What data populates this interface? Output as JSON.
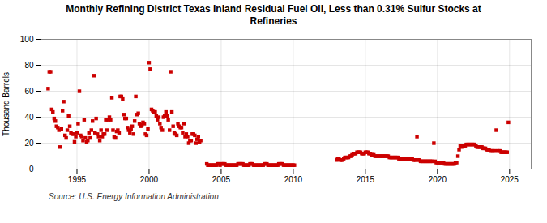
{
  "chart_data": {
    "type": "scatter",
    "title": "Monthly Refining District Texas Inland Residual Fuel Oil, Less than 0.31% Sulfur Stocks at\nRefineries",
    "ylabel": "Thousand Barrels",
    "source": "Source: U.S. Energy Information Administration",
    "color": "#cc0000",
    "marker": "square",
    "grid": true,
    "xlim": [
      1992.5,
      2026.5
    ],
    "xticks": [
      1995,
      2000,
      2005,
      2010,
      2015,
      2020,
      2025
    ],
    "ylim": [
      0,
      100
    ],
    "yticks": [
      0,
      20,
      40,
      60,
      80,
      100
    ],
    "x": [
      1993.0,
      1993.08,
      1993.17,
      1993.25,
      1993.33,
      1993.42,
      1993.5,
      1993.58,
      1993.67,
      1993.75,
      1993.83,
      1993.92,
      1994.0,
      1994.08,
      1994.17,
      1994.25,
      1994.33,
      1994.42,
      1994.5,
      1994.58,
      1994.67,
      1994.75,
      1994.83,
      1994.92,
      1995.0,
      1995.08,
      1995.17,
      1995.25,
      1995.33,
      1995.42,
      1995.5,
      1995.58,
      1995.67,
      1995.75,
      1995.83,
      1995.92,
      1996.0,
      1996.08,
      1996.17,
      1996.25,
      1996.33,
      1996.42,
      1996.5,
      1996.58,
      1996.67,
      1996.75,
      1996.83,
      1996.92,
      1997.0,
      1997.08,
      1997.17,
      1997.25,
      1997.33,
      1997.42,
      1997.5,
      1997.58,
      1997.67,
      1997.75,
      1997.83,
      1997.92,
      1998.0,
      1998.08,
      1998.17,
      1998.25,
      1998.33,
      1998.42,
      1998.5,
      1998.58,
      1998.67,
      1998.75,
      1998.83,
      1998.92,
      1999.0,
      1999.08,
      1999.17,
      1999.25,
      1999.33,
      1999.42,
      1999.5,
      1999.58,
      1999.67,
      1999.75,
      1999.83,
      1999.92,
      2000.0,
      2000.08,
      2000.17,
      2000.25,
      2000.33,
      2000.42,
      2000.5,
      2000.58,
      2000.67,
      2000.75,
      2000.83,
      2000.92,
      2001.0,
      2001.08,
      2001.17,
      2001.25,
      2001.33,
      2001.42,
      2001.5,
      2001.58,
      2001.67,
      2001.75,
      2001.83,
      2001.92,
      2002.0,
      2002.08,
      2002.17,
      2002.25,
      2002.33,
      2002.42,
      2002.5,
      2002.58,
      2002.67,
      2002.75,
      2002.83,
      2002.92,
      2003.0,
      2003.08,
      2003.17,
      2003.25,
      2003.33,
      2003.42,
      2003.5,
      2003.58,
      2004.0,
      2004.08,
      2004.17,
      2004.25,
      2004.33,
      2004.42,
      2004.5,
      2004.58,
      2004.67,
      2004.75,
      2004.83,
      2004.92,
      2005.0,
      2005.08,
      2005.17,
      2005.25,
      2005.33,
      2005.42,
      2005.5,
      2005.58,
      2005.67,
      2005.75,
      2005.83,
      2005.92,
      2006.0,
      2006.08,
      2006.17,
      2006.25,
      2006.33,
      2006.42,
      2006.5,
      2006.58,
      2006.67,
      2006.75,
      2006.83,
      2006.92,
      2007.0,
      2007.08,
      2007.17,
      2007.25,
      2007.33,
      2007.42,
      2007.5,
      2007.58,
      2007.67,
      2007.75,
      2007.83,
      2007.92,
      2008.0,
      2008.08,
      2008.17,
      2008.25,
      2008.33,
      2008.42,
      2008.5,
      2008.58,
      2008.67,
      2008.75,
      2008.83,
      2008.92,
      2009.0,
      2009.08,
      2009.17,
      2009.25,
      2009.33,
      2009.42,
      2009.5,
      2009.58,
      2009.67,
      2009.75,
      2009.83,
      2009.92,
      2010.0,
      2010.08,
      2013.0,
      2013.08,
      2013.17,
      2013.25,
      2013.33,
      2013.42,
      2013.5,
      2013.58,
      2013.67,
      2013.75,
      2013.83,
      2013.92,
      2014.0,
      2014.08,
      2014.17,
      2014.25,
      2014.33,
      2014.42,
      2014.5,
      2014.58,
      2014.67,
      2014.75,
      2014.83,
      2014.92,
      2015.0,
      2015.08,
      2015.17,
      2015.25,
      2015.33,
      2015.42,
      2015.5,
      2015.58,
      2015.67,
      2015.75,
      2015.83,
      2015.92,
      2016.0,
      2016.08,
      2016.17,
      2016.25,
      2016.33,
      2016.42,
      2016.5,
      2016.58,
      2016.67,
      2016.75,
      2016.83,
      2016.92,
      2017.0,
      2017.08,
      2017.17,
      2017.25,
      2017.33,
      2017.42,
      2017.5,
      2017.58,
      2017.67,
      2017.75,
      2017.83,
      2017.92,
      2018.0,
      2018.08,
      2018.17,
      2018.25,
      2018.33,
      2018.42,
      2018.5,
      2018.58,
      2018.67,
      2018.75,
      2018.83,
      2018.92,
      2019.0,
      2019.08,
      2019.17,
      2019.25,
      2019.33,
      2019.42,
      2019.5,
      2019.58,
      2019.67,
      2019.75,
      2019.83,
      2019.92,
      2020.0,
      2020.08,
      2020.17,
      2020.25,
      2020.33,
      2020.42,
      2020.5,
      2020.58,
      2020.67,
      2020.75,
      2020.83,
      2020.92,
      2021.0,
      2021.08,
      2021.17,
      2021.25,
      2021.33,
      2021.42,
      2021.5,
      2021.58,
      2021.67,
      2021.75,
      2021.83,
      2021.92,
      2022.0,
      2022.08,
      2022.17,
      2022.25,
      2022.33,
      2022.42,
      2022.5,
      2022.58,
      2022.67,
      2022.75,
      2022.83,
      2022.92,
      2023.0,
      2023.08,
      2023.17,
      2023.25,
      2023.33,
      2023.42,
      2023.5,
      2023.58,
      2023.67,
      2023.75,
      2023.83,
      2023.92,
      2024.0,
      2024.08,
      2024.17,
      2024.25,
      2024.33,
      2024.42,
      2024.5,
      2024.58,
      2024.67,
      2024.75,
      2024.83,
      2024.92
    ],
    "values": [
      62,
      75,
      75,
      46,
      44,
      39,
      37,
      33,
      32,
      30,
      17,
      31,
      45,
      52,
      26,
      24,
      30,
      41,
      33,
      28,
      27,
      27,
      21,
      25,
      28,
      35,
      60,
      26,
      25,
      22,
      38,
      24,
      21,
      22,
      28,
      24,
      30,
      37,
      72,
      28,
      39,
      27,
      25,
      22,
      30,
      25,
      27,
      27,
      38,
      30,
      38,
      40,
      38,
      55,
      30,
      25,
      24,
      29,
      30,
      28,
      56,
      56,
      54,
      42,
      39,
      39,
      32,
      30,
      28,
      31,
      33,
      27,
      37,
      56,
      42,
      43,
      35,
      33,
      34,
      36,
      35,
      27,
      26,
      31,
      82,
      77,
      46,
      45,
      44,
      44,
      41,
      38,
      40,
      35,
      32,
      30,
      40,
      41,
      44,
      41,
      38,
      30,
      75,
      44,
      33,
      28,
      27,
      26,
      35,
      33,
      32,
      32,
      28,
      35,
      25,
      27,
      25,
      20,
      22,
      22,
      27,
      27,
      26,
      20,
      23,
      25,
      21,
      22,
      4,
      3,
      3,
      3,
      3,
      3,
      3,
      3,
      3,
      4,
      4,
      3,
      4,
      4,
      4,
      4,
      3,
      3,
      3,
      3,
      3,
      3,
      3,
      3,
      3,
      3,
      4,
      4,
      4,
      4,
      4,
      3,
      3,
      3,
      3,
      3,
      4,
      4,
      4,
      3,
      3,
      3,
      3,
      3,
      3,
      3,
      3,
      3,
      4,
      4,
      4,
      3,
      3,
      3,
      3,
      3,
      3,
      3,
      3,
      3,
      4,
      4,
      4,
      4,
      3,
      3,
      3,
      3,
      3,
      3,
      3,
      3,
      3,
      3,
      7,
      8,
      8,
      7,
      7,
      7,
      8,
      9,
      9,
      9,
      9,
      10,
      10,
      11,
      12,
      12,
      12,
      13,
      13,
      13,
      13,
      12,
      12,
      12,
      13,
      13,
      13,
      12,
      12,
      11,
      11,
      11,
      10,
      10,
      10,
      10,
      10,
      10,
      10,
      10,
      10,
      10,
      10,
      10,
      9,
      9,
      9,
      9,
      9,
      9,
      9,
      9,
      8,
      8,
      8,
      8,
      8,
      8,
      8,
      8,
      8,
      8,
      8,
      8,
      7,
      7,
      7,
      25,
      7,
      7,
      6,
      6,
      6,
      6,
      6,
      6,
      6,
      6,
      6,
      6,
      6,
      20,
      6,
      5,
      5,
      5,
      5,
      5,
      5,
      5,
      4,
      4,
      4,
      4,
      4,
      4,
      4,
      4,
      4,
      5,
      5,
      10,
      15,
      18,
      17,
      18,
      18,
      18,
      19,
      19,
      19,
      19,
      19,
      19,
      19,
      19,
      18,
      17,
      17,
      17,
      17,
      17,
      16,
      16,
      16,
      15,
      15,
      15,
      14,
      14,
      14,
      14,
      14,
      30,
      14,
      14,
      14,
      13,
      13,
      13,
      13,
      13,
      13,
      36
    ]
  }
}
